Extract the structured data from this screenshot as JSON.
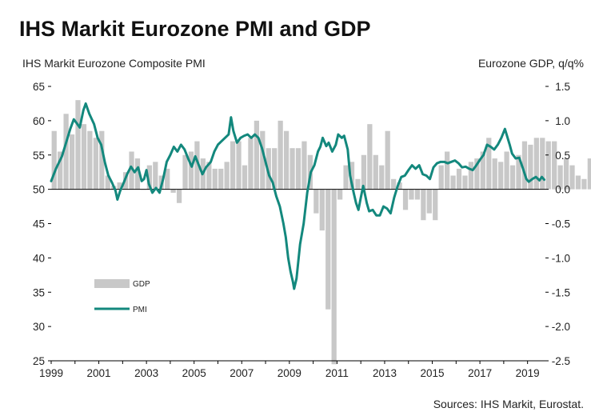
{
  "chart_data": {
    "type": "bar+line",
    "title": "IHS Markit Eurozone PMI and GDP",
    "left_axis_title": "IHS Markit Eurozone Composite PMI",
    "right_axis_title": "Eurozone GDP, q/q%",
    "source": "Sources: IHS Markit, Eurostat.",
    "left_ylim": [
      25,
      65
    ],
    "left_ticks": [
      65,
      60,
      55,
      50,
      45,
      40,
      35,
      30,
      25
    ],
    "right_ylim": [
      -2.5,
      1.5
    ],
    "right_ticks": [
      "1.5",
      "1.0",
      "0.5",
      "0.0",
      "-0.5",
      "-1.0",
      "-1.5",
      "-2.0",
      "-2.5"
    ],
    "xlim": [
      1999,
      2019.75
    ],
    "x_ticks": [
      1999,
      2001,
      2003,
      2005,
      2007,
      2009,
      2011,
      2013,
      2015,
      2017,
      2019
    ],
    "legend": [
      {
        "label": "GDP",
        "color": "#c8c8c8"
      },
      {
        "label": "PMI",
        "color": "#13887d"
      }
    ],
    "series": [
      {
        "name": "GDP",
        "axis": "right",
        "type": "bar",
        "start": 1999.0,
        "step": 0.25,
        "values": [
          0.85,
          0.55,
          1.1,
          0.8,
          1.3,
          0.95,
          0.85,
          0.75,
          0.85,
          0.2,
          0.05,
          0.1,
          0.25,
          0.55,
          0.45,
          0.0,
          0.35,
          0.4,
          0.2,
          0.3,
          -0.05,
          -0.2,
          0.5,
          0.55,
          0.7,
          0.45,
          0.4,
          0.3,
          0.3,
          0.4,
          0.7,
          0.7,
          0.35,
          0.75,
          1.0,
          0.85,
          0.6,
          0.6,
          1.0,
          0.85,
          0.6,
          0.6,
          0.7,
          0.5,
          -0.35,
          -0.6,
          -1.75,
          -2.55,
          -0.15,
          0.35,
          0.4,
          0.15,
          0.5,
          0.95,
          0.5,
          0.35,
          0.85,
          0.15,
          0.1,
          -0.3,
          -0.15,
          -0.15,
          -0.45,
          -0.35,
          -0.45,
          0.35,
          0.55,
          0.2,
          0.3,
          0.2,
          0.4,
          0.45,
          0.55,
          0.75,
          0.45,
          0.4,
          0.55,
          0.35,
          0.5,
          0.7,
          0.65,
          0.75,
          0.75,
          0.7,
          0.7,
          0.35,
          0.45,
          0.35,
          0.2,
          0.15,
          0.45,
          0.2,
          0.25
        ]
      },
      {
        "name": "PMI",
        "axis": "left",
        "type": "line",
        "points": [
          [
            1999.0,
            51.2
          ],
          [
            1999.2,
            53.0
          ],
          [
            1999.45,
            54.8
          ],
          [
            1999.6,
            56.5
          ],
          [
            1999.8,
            58.8
          ],
          [
            1999.95,
            60.2
          ],
          [
            2000.1,
            59.5
          ],
          [
            2000.2,
            59.0
          ],
          [
            2000.35,
            61.5
          ],
          [
            2000.45,
            62.5
          ],
          [
            2000.6,
            61.0
          ],
          [
            2000.8,
            59.5
          ],
          [
            2000.95,
            57.5
          ],
          [
            2001.1,
            56.5
          ],
          [
            2001.25,
            54.0
          ],
          [
            2001.4,
            52.0
          ],
          [
            2001.55,
            51.0
          ],
          [
            2001.7,
            49.8
          ],
          [
            2001.78,
            48.5
          ],
          [
            2001.9,
            49.8
          ],
          [
            2002.05,
            51.0
          ],
          [
            2002.2,
            52.3
          ],
          [
            2002.35,
            53.3
          ],
          [
            2002.5,
            52.5
          ],
          [
            2002.65,
            53.2
          ],
          [
            2002.8,
            51.2
          ],
          [
            2002.9,
            51.5
          ],
          [
            2003.0,
            52.8
          ],
          [
            2003.1,
            50.8
          ],
          [
            2003.25,
            49.5
          ],
          [
            2003.4,
            50.2
          ],
          [
            2003.55,
            49.5
          ],
          [
            2003.7,
            51.5
          ],
          [
            2003.85,
            54.0
          ],
          [
            2004.0,
            55.0
          ],
          [
            2004.15,
            56.2
          ],
          [
            2004.3,
            55.5
          ],
          [
            2004.45,
            56.5
          ],
          [
            2004.6,
            55.8
          ],
          [
            2004.75,
            54.5
          ],
          [
            2004.9,
            53.3
          ],
          [
            2005.05,
            54.8
          ],
          [
            2005.2,
            53.5
          ],
          [
            2005.35,
            52.2
          ],
          [
            2005.5,
            53.2
          ],
          [
            2005.7,
            54.0
          ],
          [
            2005.85,
            55.5
          ],
          [
            2006.0,
            56.5
          ],
          [
            2006.15,
            57.0
          ],
          [
            2006.3,
            57.5
          ],
          [
            2006.45,
            58.0
          ],
          [
            2006.55,
            60.5
          ],
          [
            2006.65,
            58.5
          ],
          [
            2006.8,
            56.8
          ],
          [
            2006.95,
            57.5
          ],
          [
            2007.1,
            57.8
          ],
          [
            2007.25,
            58.0
          ],
          [
            2007.4,
            57.5
          ],
          [
            2007.55,
            58.0
          ],
          [
            2007.7,
            57.5
          ],
          [
            2007.85,
            56.0
          ],
          [
            2008.0,
            54.0
          ],
          [
            2008.15,
            52.0
          ],
          [
            2008.3,
            51.0
          ],
          [
            2008.45,
            49.0
          ],
          [
            2008.6,
            47.5
          ],
          [
            2008.75,
            45.0
          ],
          [
            2008.85,
            43.0
          ],
          [
            2008.95,
            40.0
          ],
          [
            2009.05,
            38.0
          ],
          [
            2009.15,
            36.5
          ],
          [
            2009.2,
            35.5
          ],
          [
            2009.3,
            37.0
          ],
          [
            2009.45,
            42.0
          ],
          [
            2009.6,
            45.0
          ],
          [
            2009.75,
            49.5
          ],
          [
            2009.9,
            52.5
          ],
          [
            2010.05,
            53.5
          ],
          [
            2010.2,
            55.5
          ],
          [
            2010.3,
            56.2
          ],
          [
            2010.4,
            57.5
          ],
          [
            2010.55,
            56.3
          ],
          [
            2010.65,
            56.8
          ],
          [
            2010.8,
            55.5
          ],
          [
            2010.95,
            56.5
          ],
          [
            2011.05,
            58.0
          ],
          [
            2011.2,
            57.5
          ],
          [
            2011.3,
            57.8
          ],
          [
            2011.45,
            55.8
          ],
          [
            2011.55,
            52.0
          ],
          [
            2011.7,
            49.5
          ],
          [
            2011.8,
            48.0
          ],
          [
            2011.9,
            47.0
          ],
          [
            2012.0,
            48.8
          ],
          [
            2012.1,
            50.5
          ],
          [
            2012.25,
            48.0
          ],
          [
            2012.35,
            46.8
          ],
          [
            2012.5,
            47.0
          ],
          [
            2012.65,
            46.2
          ],
          [
            2012.8,
            46.2
          ],
          [
            2012.95,
            47.5
          ],
          [
            2013.1,
            47.2
          ],
          [
            2013.25,
            46.5
          ],
          [
            2013.4,
            48.8
          ],
          [
            2013.55,
            50.5
          ],
          [
            2013.7,
            51.8
          ],
          [
            2013.85,
            52.0
          ],
          [
            2014.0,
            52.8
          ],
          [
            2014.15,
            53.5
          ],
          [
            2014.3,
            53.0
          ],
          [
            2014.45,
            53.5
          ],
          [
            2014.6,
            52.2
          ],
          [
            2014.75,
            52.0
          ],
          [
            2014.9,
            51.5
          ],
          [
            2015.05,
            53.2
          ],
          [
            2015.2,
            53.8
          ],
          [
            2015.35,
            54.0
          ],
          [
            2015.5,
            54.0
          ],
          [
            2015.65,
            53.8
          ],
          [
            2015.8,
            54.0
          ],
          [
            2015.95,
            54.2
          ],
          [
            2016.1,
            53.8
          ],
          [
            2016.25,
            53.2
          ],
          [
            2016.4,
            53.3
          ],
          [
            2016.55,
            53.0
          ],
          [
            2016.7,
            52.8
          ],
          [
            2016.85,
            53.5
          ],
          [
            2017.0,
            54.3
          ],
          [
            2017.15,
            55.0
          ],
          [
            2017.3,
            56.5
          ],
          [
            2017.45,
            56.2
          ],
          [
            2017.6,
            55.8
          ],
          [
            2017.75,
            56.5
          ],
          [
            2017.9,
            57.5
          ],
          [
            2018.05,
            58.8
          ],
          [
            2018.12,
            58.0
          ],
          [
            2018.25,
            56.5
          ],
          [
            2018.35,
            55.2
          ],
          [
            2018.5,
            54.5
          ],
          [
            2018.65,
            54.6
          ],
          [
            2018.8,
            53.1
          ],
          [
            2018.95,
            51.5
          ],
          [
            2019.05,
            51.1
          ],
          [
            2019.2,
            51.5
          ],
          [
            2019.35,
            51.8
          ],
          [
            2019.5,
            51.3
          ],
          [
            2019.6,
            51.8
          ],
          [
            2019.7,
            51.4
          ]
        ]
      }
    ]
  }
}
